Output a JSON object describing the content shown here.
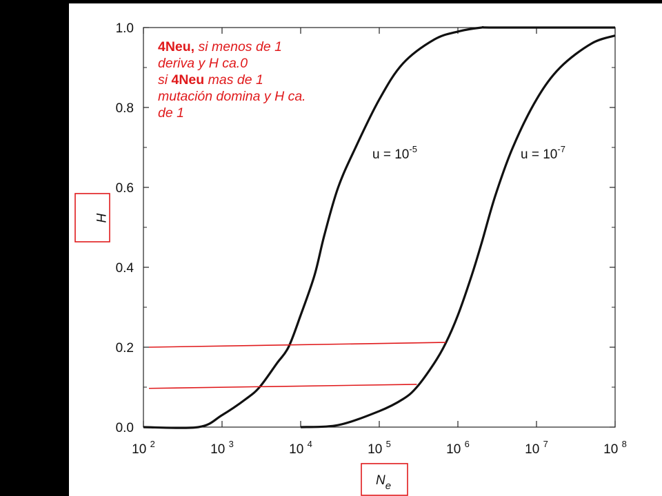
{
  "chart_data": {
    "type": "line",
    "x_scale": "log",
    "xlim": [
      100,
      100000000
    ],
    "ylim": [
      0.0,
      1.0
    ],
    "x_ticks": [
      {
        "base": "10",
        "exp": "2"
      },
      {
        "base": "10",
        "exp": "3"
      },
      {
        "base": "10",
        "exp": "4"
      },
      {
        "base": "10",
        "exp": "5"
      },
      {
        "base": "10",
        "exp": "6"
      },
      {
        "base": "10",
        "exp": "7"
      },
      {
        "base": "10",
        "exp": "8"
      }
    ],
    "y_ticks": [
      "0.0",
      "0.2",
      "0.4",
      "0.6",
      "0.8",
      "1.0"
    ],
    "xlabel": {
      "main": "N",
      "sub": "e"
    },
    "ylabel": "H",
    "series": [
      {
        "label_prefix": "u = 10",
        "label_exp": "-5",
        "x": [
          100,
          500,
          1000,
          2000,
          3000,
          5000,
          7000,
          10000,
          15000,
          20000,
          30000,
          50000,
          100000,
          200000,
          500000,
          1000000,
          2000000,
          3000000,
          100000000
        ],
        "y": [
          0.0,
          0.0,
          0.03,
          0.07,
          0.1,
          0.16,
          0.2,
          0.28,
          0.38,
          0.48,
          0.6,
          0.7,
          0.82,
          0.91,
          0.97,
          0.99,
          1.0,
          1.0,
          1.0
        ]
      },
      {
        "label_prefix": "u = 10",
        "label_exp": "-7",
        "x": [
          10000,
          30000,
          100000,
          200000,
          300000,
          500000,
          700000,
          1000000,
          1500000,
          2000000,
          3000000,
          5000000,
          10000000,
          20000000,
          50000000,
          100000000
        ],
        "y": [
          0.0,
          0.005,
          0.04,
          0.07,
          0.1,
          0.16,
          0.21,
          0.28,
          0.38,
          0.46,
          0.58,
          0.7,
          0.82,
          0.9,
          0.96,
          0.98
        ]
      }
    ],
    "annotations": {
      "reference_lines": [
        {
          "x_start": 100,
          "y_start": 0.2,
          "x_end": 700000,
          "y_end": 0.212
        },
        {
          "x_start": 100,
          "y_start": 0.097,
          "x_end": 300000,
          "y_end": 0.107
        }
      ],
      "reference_color": "#e0191b"
    }
  },
  "note": {
    "l1_bold": "4Neu,",
    "l1_rest": " si menos de 1",
    "l2": "deriva y H ca.0",
    "l3_pre": "si ",
    "l3_bold": "4Neu",
    "l3_rest": " mas de 1",
    "l4": "mutación domina y H ca.",
    "l5": "de 1"
  },
  "colors": {
    "annotation": "#e0191b",
    "curve": "#111111",
    "frame": "#222222",
    "background_left": "#000000"
  }
}
